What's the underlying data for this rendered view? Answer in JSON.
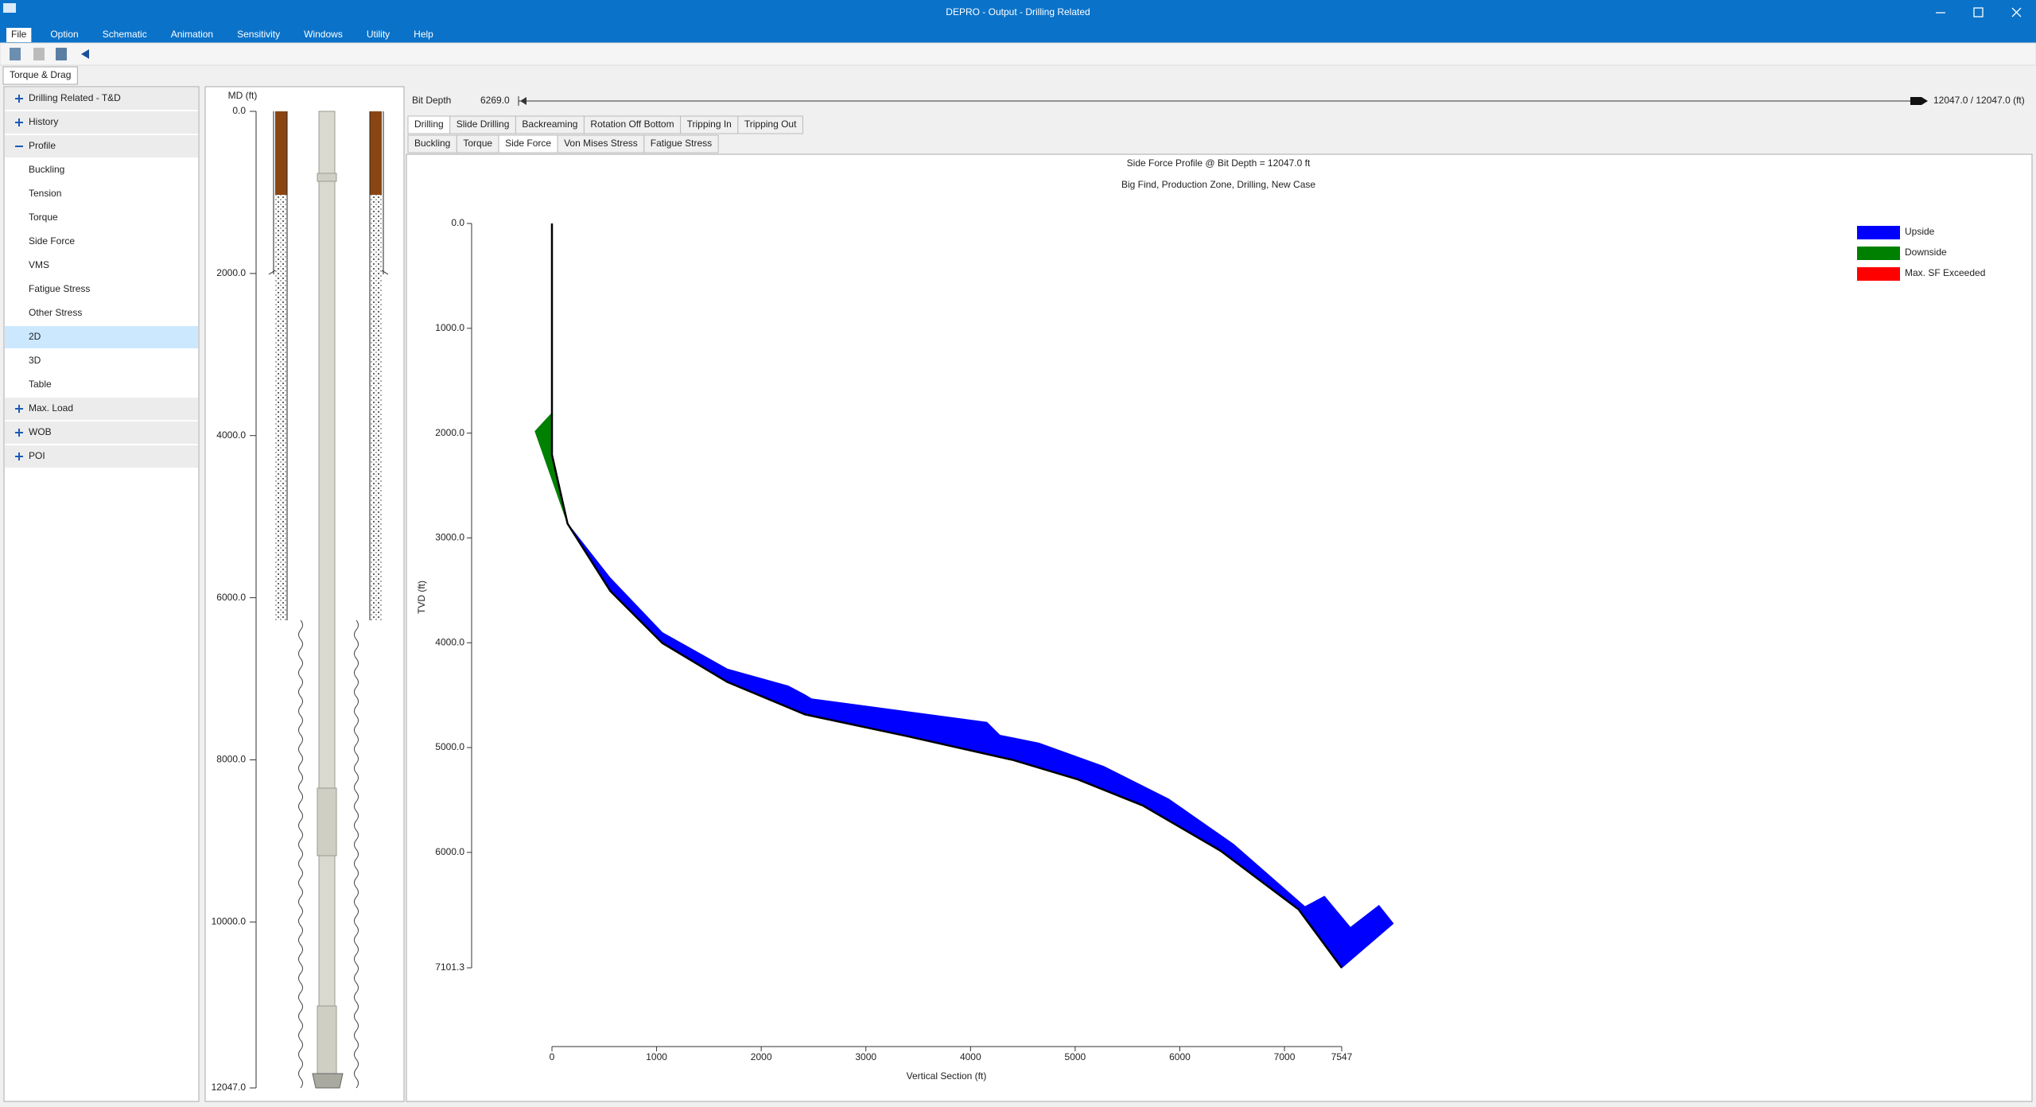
{
  "window": {
    "title": "DEPRO - Output - Drilling Related"
  },
  "menu": {
    "items": [
      "File",
      "Option",
      "Schematic",
      "Animation",
      "Sensitivity",
      "Windows",
      "Utility",
      "Help"
    ],
    "active": 0
  },
  "document_tab": "Torque & Drag",
  "tree": [
    {
      "label": "Drilling Related - T&D",
      "state": "collapsed"
    },
    {
      "label": "History",
      "state": "collapsed"
    },
    {
      "label": "Profile",
      "state": "expanded"
    },
    {
      "label": "Buckling"
    },
    {
      "label": "Tension"
    },
    {
      "label": "Torque"
    },
    {
      "label": "Side Force"
    },
    {
      "label": "VMS"
    },
    {
      "label": "Fatigue Stress"
    },
    {
      "label": "Other Stress"
    },
    {
      "label": "2D",
      "selected": true
    },
    {
      "label": "3D"
    },
    {
      "label": "Table"
    },
    {
      "label": "Max. Load",
      "state": "collapsed"
    },
    {
      "label": "WOB",
      "state": "collapsed"
    },
    {
      "label": "POI",
      "state": "collapsed"
    }
  ],
  "schematic": {
    "axis_label": "MD (ft)",
    "ylim": [
      0,
      12047
    ],
    "yticks": [
      {
        "value": 0,
        "label": "0.0"
      },
      {
        "value": 2000,
        "label": "2000.0"
      },
      {
        "value": 4000,
        "label": "4000.0"
      },
      {
        "value": 6000,
        "label": "6000.0"
      },
      {
        "value": 8000,
        "label": "8000.0"
      },
      {
        "value": 10000,
        "label": "10000.0"
      },
      {
        "value": 12047,
        "label": "12047.0"
      }
    ]
  },
  "bit_depth": {
    "label": "Bit Depth",
    "value": "6269.0",
    "range": "12047.0 / 12047.0 (ft)"
  },
  "operation_tabs": {
    "items": [
      "Drilling",
      "Slide Drilling",
      "Backreaming",
      "Rotation Off Bottom",
      "Tripping In",
      "Tripping Out"
    ],
    "selected": 0
  },
  "result_tabs": {
    "items": [
      "Buckling",
      "Torque",
      "Side Force",
      "Von Mises Stress",
      "Fatigue Stress"
    ],
    "selected": 2
  },
  "chart_data": {
    "type": "area",
    "title": "Side Force Profile @ Bit Depth = 12047.0 ft",
    "subtitle": "Big Find, Production Zone, Drilling, New Case",
    "xlabel": "Vertical Section (ft)",
    "ylabel": "TVD (ft)",
    "xlim": [
      0,
      7547
    ],
    "ylim": [
      0,
      7101.3
    ],
    "y_inverted": true,
    "xticks": [
      0,
      1000,
      2000,
      3000,
      4000,
      5000,
      6000,
      7000,
      7547
    ],
    "yticks": [
      {
        "value": 0,
        "label": "0.0"
      },
      {
        "value": 1000,
        "label": "1000.0"
      },
      {
        "value": 2000,
        "label": "2000.0"
      },
      {
        "value": 3000,
        "label": "3000.0"
      },
      {
        "value": 4000,
        "label": "4000.0"
      },
      {
        "value": 5000,
        "label": "5000.0"
      },
      {
        "value": 6000,
        "label": "6000.0"
      },
      {
        "value": 7101.3,
        "label": "7101.3"
      }
    ],
    "well_path": {
      "color": "#000000",
      "x": [
        0,
        0,
        149,
        558,
        1055,
        1675,
        2419,
        3412,
        4404,
        5025,
        5645,
        6390,
        7134,
        7547
      ],
      "y": [
        0,
        2206,
        2863,
        3507,
        4003,
        4374,
        4684,
        4895,
        5118,
        5304,
        5552,
        5985,
        6543,
        7101.3
      ]
    },
    "series": [
      {
        "name": "Upside",
        "color": "#0000ff",
        "x": [
          149,
          558,
          1055,
          1675,
          2419,
          3412,
          4404,
          5025,
          5645,
          6390,
          7134,
          7547,
          8040,
          7903,
          7630,
          7382,
          7196,
          6514,
          5893,
          5273,
          4653,
          4280,
          4156,
          3412,
          2667,
          2481,
          2419,
          2258,
          1675,
          1055,
          558
        ],
        "y": [
          2863,
          3507,
          4003,
          4374,
          4684,
          4895,
          5118,
          5304,
          5552,
          5985,
          6543,
          7101.3,
          6679,
          6506,
          6716,
          6419,
          6518,
          5923,
          5490,
          5180,
          4957,
          4882,
          4759,
          4659,
          4560,
          4535,
          4498,
          4412,
          4250,
          3903,
          3383
        ]
      },
      {
        "name": "Downside",
        "color": "#008000",
        "x": [
          -161,
          -12,
          0,
          149
        ],
        "y": [
          1983,
          1822,
          2206,
          2863
        ]
      },
      {
        "name": "Max. SF Exceeded",
        "color": "#ff0000",
        "x": [],
        "y": []
      }
    ],
    "legend": "upper right"
  }
}
